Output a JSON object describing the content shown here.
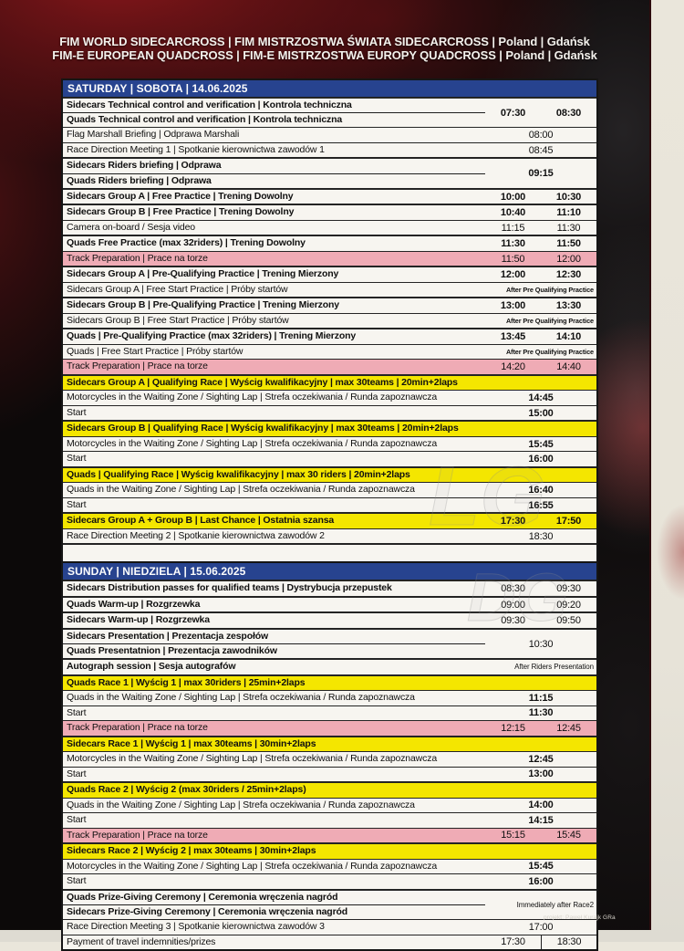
{
  "page": {
    "credit": "projekt: Paweł Kurajk GRa",
    "watermark1": "LG",
    "watermark2": "DG"
  },
  "colors": {
    "blue": "#27438f",
    "yellow": "#f4e600",
    "pink": "#efabb5",
    "paper": "#f7f5f0"
  },
  "header": {
    "line1": "FIM WORLD SIDECARCROSS | FIM MISTRZOSTWA ŚWIATA SIDECARCROSS  | Poland | Gdańsk",
    "line2": "FIM-E EUROPEAN QUADCROSS | FIM-E MISTRZOSTWA EUROPY QUADCROSS  | Poland | Gdańsk"
  },
  "days": [
    {
      "title": "SATURDAY | SOBOTA | 14.06.2025",
      "rows": [
        {
          "type": "merged",
          "lines": [
            "Sidecars Technical control and verification  | Kontrola techniczna",
            "Quads Technical control and verification  | Kontrola techniczna"
          ],
          "t1": "07:30",
          "t2": "08:30",
          "tb": true
        },
        {
          "type": "detail",
          "text": "Flag Marshall Briefing | Odprawa Marshali",
          "t": "08:00"
        },
        {
          "type": "detail",
          "text": "Race Direction Meeting 1 | Spotkanie kierownictwa zawodów 1",
          "t": "08:45"
        },
        {
          "type": "merged",
          "lines": [
            "Sidecars Riders briefing | Odprawa",
            "Quads Riders briefing | Odprawa"
          ],
          "t": "09:15",
          "tb": true
        },
        {
          "type": "session",
          "text": "Sidecars Group A | Free Practice | Trening Dowolny",
          "t1": "10:00",
          "t2": "10:30",
          "tb": true
        },
        {
          "type": "session",
          "text": "Sidecars Group B | Free Practice | Trening Dowolny",
          "t1": "10:40",
          "t2": "11:10",
          "tb": true
        },
        {
          "type": "detail",
          "text": "Camera on-board / Sesja video",
          "t1": "11:15",
          "t2": "11:30"
        },
        {
          "type": "session",
          "text": "Quads Free Practice (max 32riders) | Trening Dowolny",
          "t1": "11:30",
          "t2": "11:50",
          "tb": true
        },
        {
          "type": "track",
          "text": "Track Preparation | Prace na torze",
          "t1": "11:50",
          "t2": "12:00"
        },
        {
          "type": "session",
          "text": "Sidecars Group A | Pre-Qualifying Practice | Trening Mierzony",
          "t1": "12:00",
          "t2": "12:30",
          "tb": true
        },
        {
          "type": "detail",
          "text": "Sidecars Group A | Free Start Practice | Próby startów",
          "note": "After Pre Qualifying Practice",
          "nb": true
        },
        {
          "type": "session",
          "text": "Sidecars Group B | Pre-Qualifying Practice | Trening Mierzony",
          "t1": "13:00",
          "t2": "13:30",
          "tb": true
        },
        {
          "type": "detail",
          "text": "Sidecars Group B | Free Start Practice | Próby startów",
          "note": "After Pre Qualifying Practice",
          "nb": true
        },
        {
          "type": "session",
          "text": "Quads | Pre-Qualifying Practice (max 32riders) | Trening Mierzony",
          "t1": "13:45",
          "t2": "14:10",
          "tb": true
        },
        {
          "type": "detail",
          "text": "Quads | Free Start Practice | Próby startów",
          "note": "After Pre Qualifying Practice",
          "nb": true
        },
        {
          "type": "track",
          "text": "Track Preparation | Prace na torze",
          "t1": "14:20",
          "t2": "14:40"
        },
        {
          "type": "race",
          "text": "Sidecars Group A | Qualifying Race | Wyścig kwalifikacyjny | max 30teams | 20min+2laps"
        },
        {
          "type": "detail",
          "text": "Motorcycles in the Waiting Zone / Sighting Lap | Strefa oczekiwania / Runda zapoznawcza",
          "t": "14:45",
          "tb": true
        },
        {
          "type": "detail",
          "text": "Start",
          "t": "15:00",
          "tb": true
        },
        {
          "type": "race",
          "text": "Sidecars Group B | Qualifying Race | Wyścig kwalifikacyjny | max 30teams | 20min+2laps"
        },
        {
          "type": "detail",
          "text": "Motorcycles in the Waiting Zone / Sighting Lap | Strefa oczekiwania / Runda zapoznawcza",
          "t": "15:45",
          "tb": true
        },
        {
          "type": "detail",
          "text": "Start",
          "t": "16:00",
          "tb": true
        },
        {
          "type": "race",
          "text": "Quads | Qualifying Race | Wyścig kwalifikacyjny | max 30 riders | 20min+2laps"
        },
        {
          "type": "detail",
          "text": "Quads in the Waiting Zone / Sighting Lap | Strefa oczekiwania / Runda zapoznawcza",
          "t": "16:40",
          "tb": true
        },
        {
          "type": "detail",
          "text": "Start",
          "t": "16:55",
          "tb": true
        },
        {
          "type": "race",
          "text": "Sidecars Group A + Group B | Last Chance | Ostatnia szansa",
          "t1": "17:30",
          "t2": "17:50",
          "tb": true
        },
        {
          "type": "detail",
          "text": "Race Direction Meeting 2 | Spotkanie kierownictwa zawodów 2",
          "t": "18:30"
        },
        {
          "type": "spacer"
        }
      ]
    },
    {
      "title": "SUNDAY | NIEDZIELA | 15.06.2025",
      "rows": [
        {
          "type": "session",
          "text": "Sidecars Distribution passes for qualified teams | Dystrybucja przepustek",
          "t1": "08:30",
          "t2": "09:30"
        },
        {
          "type": "session",
          "text": "Quads Warm-up | Rozgrzewka",
          "t1": "09:00",
          "t2": "09:20"
        },
        {
          "type": "session",
          "text": "Sidecars Warm-up | Rozgrzewka",
          "t1": "09:30",
          "t2": "09:50"
        },
        {
          "type": "merged",
          "lines": [
            "Sidecars Presentation | Prezentacja zespołów",
            "Quads Presentatnion | Prezentacja zawodników"
          ],
          "t": "10:30"
        },
        {
          "type": "session",
          "text": "Autograph session | Sesja autografów",
          "note": "After Riders Presentation"
        },
        {
          "type": "race",
          "text": "Quads Race 1 | Wyścig 1 | max 30riders | 25min+2laps"
        },
        {
          "type": "detail",
          "text": "Quads in the Waiting Zone / Sighting Lap | Strefa oczekiwania / Runda zapoznawcza",
          "t": "11:15",
          "tb": true
        },
        {
          "type": "detail",
          "text": "Start",
          "t": "11:30",
          "tb": true
        },
        {
          "type": "track",
          "text": "Track Preparation | Prace na torze",
          "t1": "12:15",
          "t2": "12:45"
        },
        {
          "type": "race",
          "text": "Sidecars Race 1 | Wyścig 1 | max 30teams | 30min+2laps"
        },
        {
          "type": "detail",
          "text": "Motorcycles in the Waiting Zone / Sighting Lap | Strefa oczekiwania / Runda zapoznawcza",
          "t": "12:45",
          "tb": true
        },
        {
          "type": "detail",
          "text": "Start",
          "t": "13:00",
          "tb": true
        },
        {
          "type": "race",
          "text": "Quads Race 2 | Wyścig 2 (max 30riders / 25min+2laps)"
        },
        {
          "type": "detail",
          "text": "Quads in the Waiting Zone / Sighting Lap | Strefa oczekiwania / Runda zapoznawcza",
          "t": "14:00",
          "tb": true
        },
        {
          "type": "detail",
          "text": "Start",
          "t": "14:15",
          "tb": true
        },
        {
          "type": "track",
          "text": "Track Preparation | Prace na torze",
          "t1": "15:15",
          "t2": "15:45"
        },
        {
          "type": "race",
          "text": "Sidecars Race 2 | Wyścig 2 | max 30teams | 30min+2laps"
        },
        {
          "type": "detail",
          "text": "Motorcycles in the Waiting Zone / Sighting Lap | Strefa oczekiwania / Runda zapoznawcza",
          "t": "15:45",
          "tb": true
        },
        {
          "type": "detail",
          "text": "Start",
          "t": "16:00",
          "tb": true
        },
        {
          "type": "merged",
          "lines": [
            "Quads Prize-Giving Ceremony | Ceremonia wręczenia nagród",
            "Sidecars Prize-Giving Ceremony | Ceremonia wręczenia nagród"
          ],
          "note": "Immediately after Race2"
        },
        {
          "type": "detail",
          "text": "Race Direction Meeting 3 | Spotkanie kierownictwa zawodów 3",
          "t": "17:00"
        },
        {
          "type": "detail",
          "text": "Payment of travel indemnities/prizes",
          "t1": "17:30",
          "t2": "18:30",
          "tdiv": true
        }
      ]
    }
  ]
}
